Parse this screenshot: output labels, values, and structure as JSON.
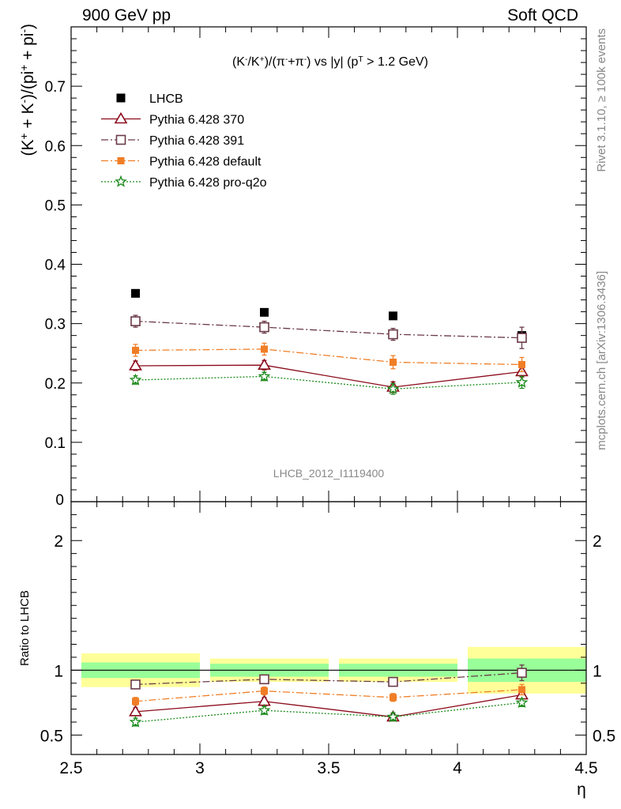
{
  "header": {
    "left": "900 GeV pp",
    "right": "Soft QCD"
  },
  "side_labels": {
    "rivet": "Rivet 3.1.10, ≥ 100k events",
    "mcplots": "mcplots.cern.ch [arXiv:1306.3436]"
  },
  "chart_data": [
    {
      "type": "scatter",
      "title_parts": [
        "(K",
        "-",
        "/K",
        "+",
        ")/(π",
        "-",
        "+π",
        "-",
        ") vs |y| (p",
        "T",
        " > 1.2 GeV)"
      ],
      "ylabel_parts": [
        "(K",
        "+",
        " + K",
        "-",
        ")/(pi",
        "+",
        " + pi",
        "-",
        ")"
      ],
      "watermark": "LHCB_2012_I1119400",
      "xlim": [
        2.5,
        4.5
      ],
      "ylim": [
        0,
        0.8
      ],
      "y_ticks": [
        0.1,
        0.2,
        0.3,
        0.4,
        0.5,
        0.6,
        0.7
      ],
      "y_tick_labels": [
        "0.1",
        "0.2",
        "0.3",
        "0.4",
        "0.5",
        "0.6",
        "0.7"
      ],
      "bottom_tick_label": "0",
      "x": [
        2.75,
        3.25,
        3.75,
        4.25
      ],
      "legend_position": "top-left",
      "series": [
        {
          "name": "LHCB",
          "color": "#000000",
          "marker": "filled-square",
          "line": "none",
          "values": [
            0.351,
            0.319,
            0.313,
            0.28
          ],
          "errors": [
            0.0,
            0.0,
            0.0,
            0.0
          ]
        },
        {
          "name": "Pythia 6.428 370",
          "color": "#8b0b1b",
          "marker": "open-triangle",
          "line": "solid",
          "values": [
            0.229,
            0.23,
            0.193,
            0.219
          ],
          "errors": [
            0.008,
            0.008,
            0.009,
            0.009
          ]
        },
        {
          "name": "Pythia 6.428 391",
          "color": "#6b3a48",
          "marker": "open-square",
          "line": "dashdot",
          "values": [
            0.304,
            0.294,
            0.282,
            0.276
          ],
          "errors": [
            0.01,
            0.01,
            0.01,
            0.018
          ]
        },
        {
          "name": "Pythia 6.428 default",
          "color": "#f07e26",
          "marker": "filled-square-small",
          "line": "dashdot",
          "values": [
            0.255,
            0.257,
            0.235,
            0.231
          ],
          "errors": [
            0.01,
            0.01,
            0.011,
            0.012
          ]
        },
        {
          "name": "Pythia 6.428 pro-q2o",
          "color": "#1a8a1a",
          "marker": "star",
          "line": "dotted",
          "values": [
            0.205,
            0.211,
            0.19,
            0.201
          ],
          "errors": [
            0.007,
            0.007,
            0.009,
            0.01
          ]
        }
      ]
    },
    {
      "type": "scatter",
      "ylabel": "Ratio to LHCB",
      "xlabel": "η",
      "xlim": [
        2.5,
        4.5
      ],
      "ylim": [
        0.35,
        2.3
      ],
      "y_ticks": [
        0.5,
        1,
        2
      ],
      "y_tick_labels": [
        "0.5",
        "1",
        "2"
      ],
      "x_ticks": [
        2.5,
        3,
        3.5,
        4,
        4.5
      ],
      "x_tick_labels": [
        "2.5",
        "3",
        "3.5",
        "4",
        "4.5"
      ],
      "reference_line": 1,
      "bands": [
        {
          "x": [
            2.5,
            3.0
          ],
          "inner": [
            0.94,
            1.06
          ],
          "outer": [
            0.87,
            1.13
          ]
        },
        {
          "x": [
            3.0,
            3.5
          ],
          "inner": [
            0.95,
            1.05
          ],
          "outer": [
            0.91,
            1.09
          ]
        },
        {
          "x": [
            3.5,
            4.0
          ],
          "inner": [
            0.95,
            1.05
          ],
          "outer": [
            0.91,
            1.09
          ]
        },
        {
          "x": [
            4.0,
            4.5
          ],
          "inner": [
            0.91,
            1.09
          ],
          "outer": [
            0.82,
            1.18
          ]
        }
      ],
      "x": [
        2.75,
        3.25,
        3.75,
        4.25
      ],
      "series": [
        {
          "name": "Pythia 6.428 370",
          "values": [
            0.68,
            0.76,
            0.64,
            0.81
          ],
          "errors": [
            0.03,
            0.03,
            0.03,
            0.03
          ]
        },
        {
          "name": "Pythia 6.428 391",
          "values": [
            0.89,
            0.93,
            0.91,
            0.98
          ],
          "errors": [
            0.03,
            0.03,
            0.03,
            0.06
          ]
        },
        {
          "name": "Pythia 6.428 default",
          "values": [
            0.76,
            0.84,
            0.79,
            0.85
          ],
          "errors": [
            0.03,
            0.03,
            0.03,
            0.04
          ]
        },
        {
          "name": "Pythia 6.428 pro-q2o",
          "values": [
            0.6,
            0.69,
            0.64,
            0.75
          ],
          "errors": [
            0.03,
            0.03,
            0.03,
            0.03
          ]
        }
      ]
    }
  ],
  "colors": {
    "band_inner": "#99ff99",
    "band_outer": "#ffff99",
    "grey_text": "#888888"
  }
}
